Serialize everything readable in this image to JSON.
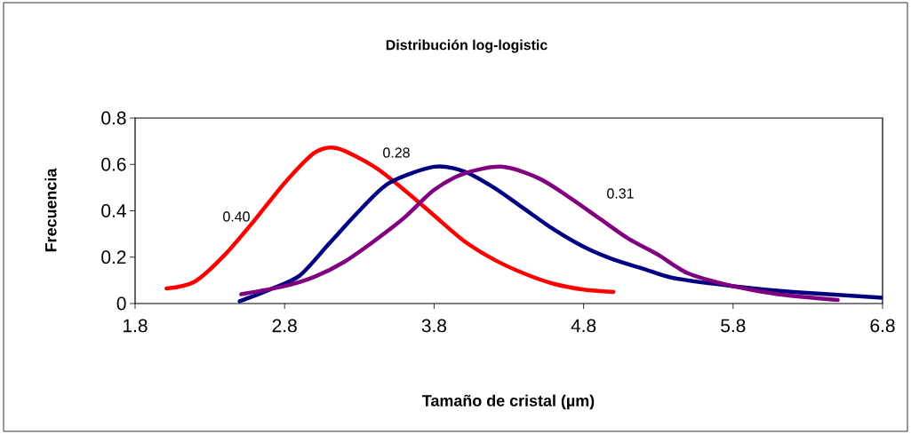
{
  "chart_data": {
    "type": "line",
    "title": "Distribución log-logistic",
    "xlabel": "Tamaño de cristal (µm)",
    "ylabel": "Frecuencia",
    "xlim": [
      1.8,
      6.8
    ],
    "xticks": [
      1.8,
      2.8,
      3.8,
      4.8,
      5.8,
      6.8
    ],
    "ylim": [
      0,
      0.8
    ],
    "yticks": [
      0,
      0.2,
      0.4,
      0.6,
      0.8
    ],
    "grid": false,
    "series": [
      {
        "color": "#ff0000",
        "x": [
          2.01,
          2.2,
          2.4,
          2.6,
          2.8,
          3.0,
          3.15,
          3.4,
          3.6,
          3.8,
          4.0,
          4.2,
          4.4,
          4.6,
          4.8,
          5.0
        ],
        "values": [
          0.065,
          0.095,
          0.21,
          0.36,
          0.52,
          0.65,
          0.67,
          0.59,
          0.49,
          0.38,
          0.27,
          0.19,
          0.13,
          0.085,
          0.06,
          0.05
        ]
      },
      {
        "color": "#000080",
        "x": [
          2.5,
          2.7,
          2.9,
          3.1,
          3.3,
          3.5,
          3.8,
          4.0,
          4.2,
          4.4,
          4.6,
          4.8,
          5.0,
          5.2,
          5.4,
          5.8,
          6.2,
          6.8
        ],
        "values": [
          0.01,
          0.06,
          0.12,
          0.26,
          0.4,
          0.52,
          0.59,
          0.57,
          0.5,
          0.41,
          0.32,
          0.245,
          0.19,
          0.15,
          0.11,
          0.075,
          0.05,
          0.025
        ]
      },
      {
        "color": "#800080",
        "x": [
          2.51,
          2.8,
          3.0,
          3.2,
          3.4,
          3.6,
          3.8,
          4.0,
          4.25,
          4.5,
          4.7,
          4.9,
          5.1,
          5.3,
          5.5,
          5.8,
          6.1,
          6.5
        ],
        "values": [
          0.04,
          0.075,
          0.115,
          0.18,
          0.27,
          0.37,
          0.49,
          0.56,
          0.59,
          0.54,
          0.46,
          0.37,
          0.28,
          0.21,
          0.13,
          0.075,
          0.04,
          0.015
        ]
      }
    ],
    "annotations": [
      "0.40",
      "0.28",
      "0.31"
    ]
  }
}
